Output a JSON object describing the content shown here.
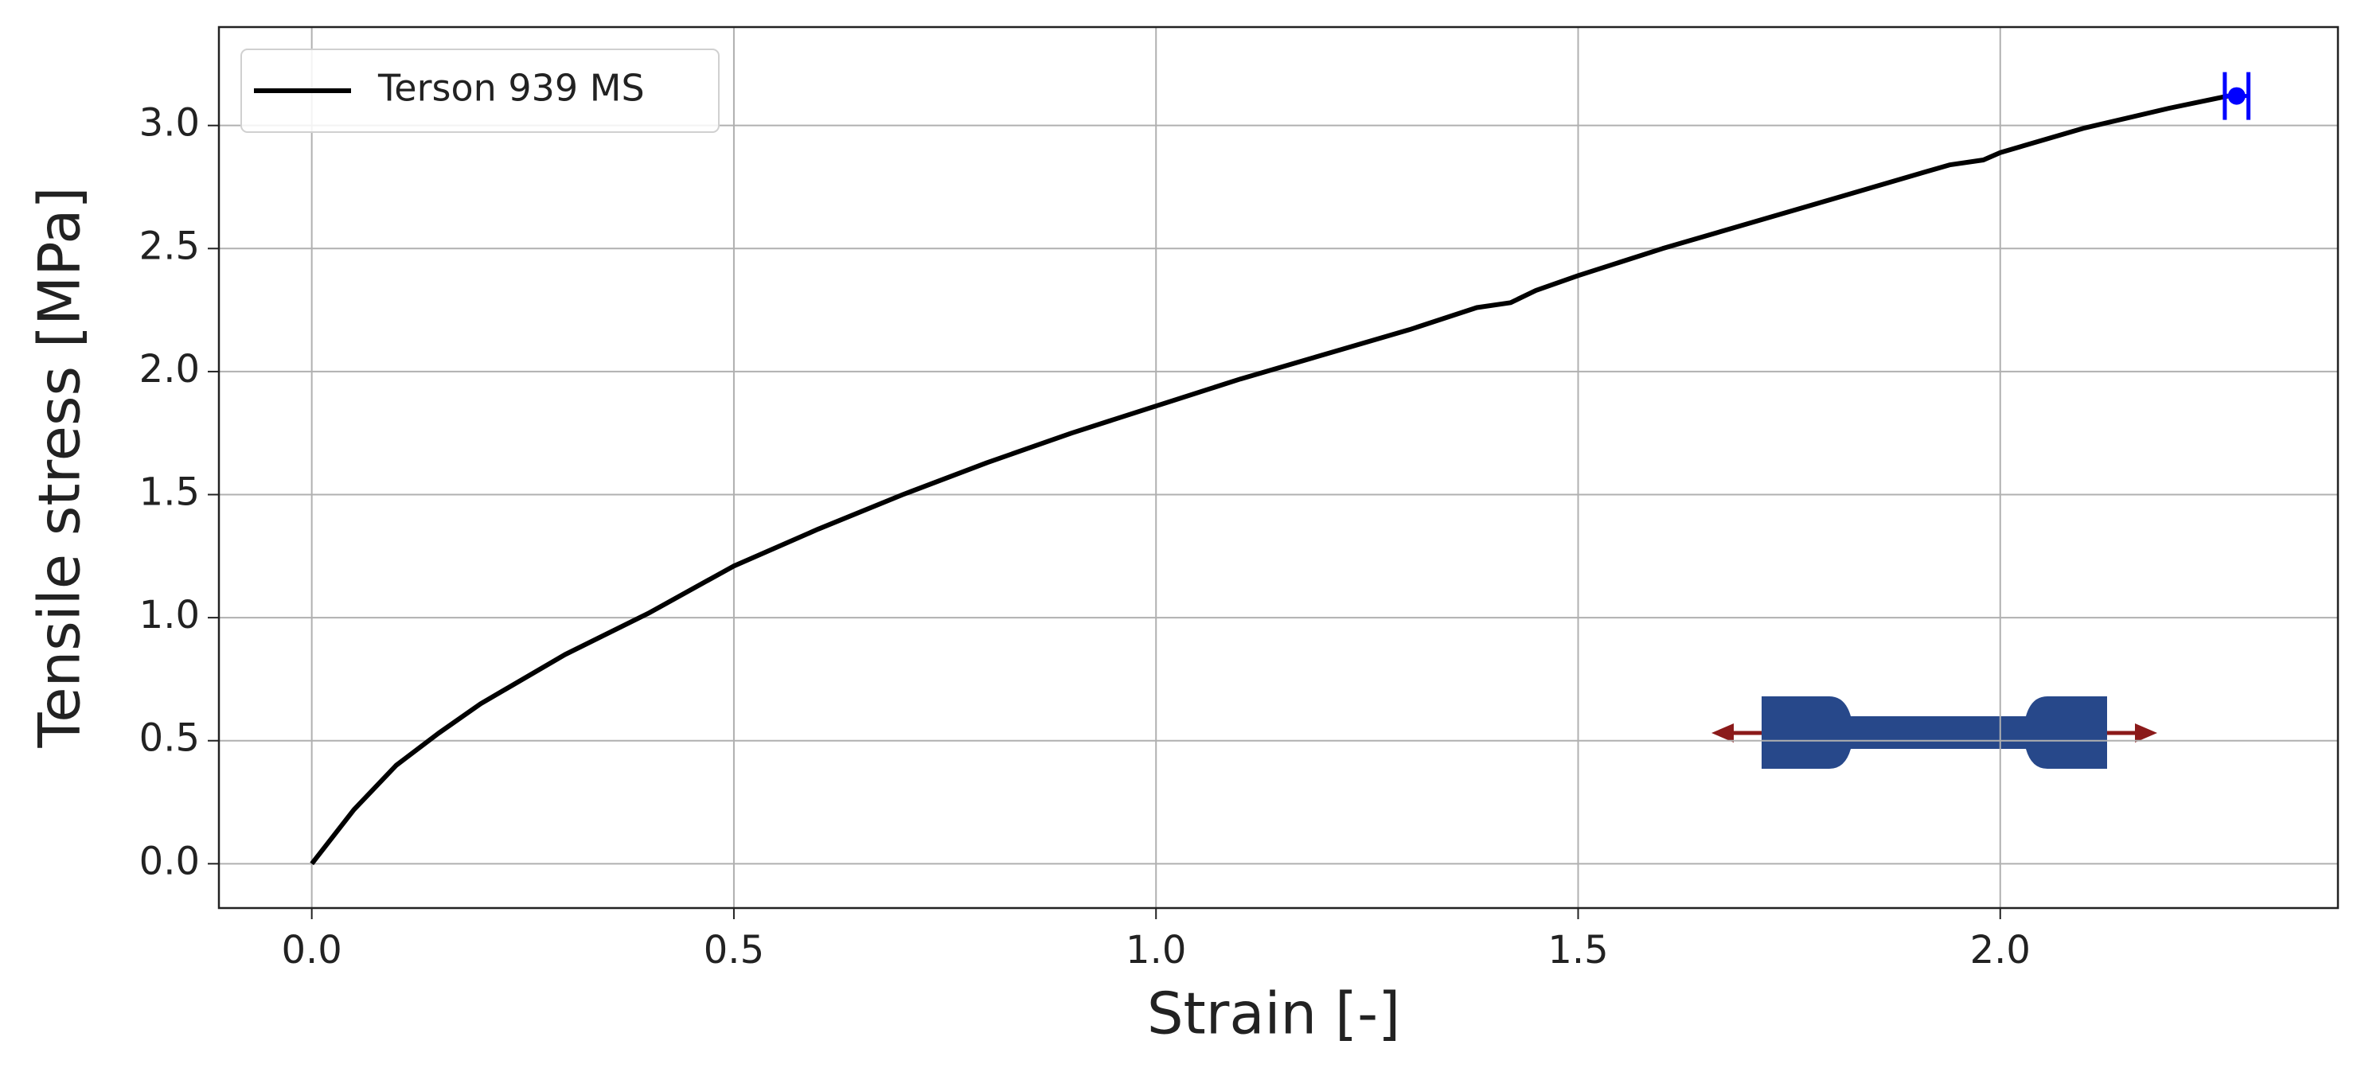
{
  "chart_data": {
    "type": "line",
    "xlabel": "Strain [-]",
    "ylabel": "Tensile stress [MPa]",
    "xlim": [
      -0.11,
      2.4
    ],
    "ylim": [
      -0.18,
      3.4
    ],
    "xticks": [
      {
        "value": 0,
        "label": "0.0"
      },
      0.5,
      {
        "value": 1,
        "label": "1.0"
      },
      1.5,
      {
        "value": 2,
        "label": "2.0"
      }
    ],
    "yticks": [
      {
        "value": 0,
        "label": "0.0"
      },
      0.5,
      {
        "value": 1,
        "label": "1.0"
      },
      1.5,
      {
        "value": 2,
        "label": "2.0"
      },
      2.5,
      {
        "value": 3,
        "label": "3.0"
      }
    ],
    "grid": true,
    "legend": "upper left",
    "series": [
      {
        "name": "Terson 939 MS",
        "color": "#000000",
        "x": [
          0,
          0.05,
          0.1,
          0.15,
          0.2,
          0.3,
          0.4,
          0.5,
          0.6,
          0.7,
          0.8,
          0.9,
          1.0,
          1.1,
          1.2,
          1.3,
          1.38,
          1.42,
          1.45,
          1.5,
          1.6,
          1.7,
          1.8,
          1.9,
          1.94,
          1.98,
          2.0,
          2.1,
          2.2,
          2.27
        ],
        "values": [
          0,
          0.22,
          0.4,
          0.53,
          0.65,
          0.85,
          1.02,
          1.21,
          1.36,
          1.5,
          1.63,
          1.75,
          1.86,
          1.97,
          2.07,
          2.17,
          2.26,
          2.28,
          2.33,
          2.39,
          2.5,
          2.6,
          2.7,
          2.8,
          2.84,
          2.86,
          2.89,
          2.99,
          3.07,
          3.12
        ]
      }
    ],
    "end_point": {
      "x": 2.28,
      "y": 3.12,
      "xerr": 0.014,
      "color": "#0000ff"
    }
  }
}
